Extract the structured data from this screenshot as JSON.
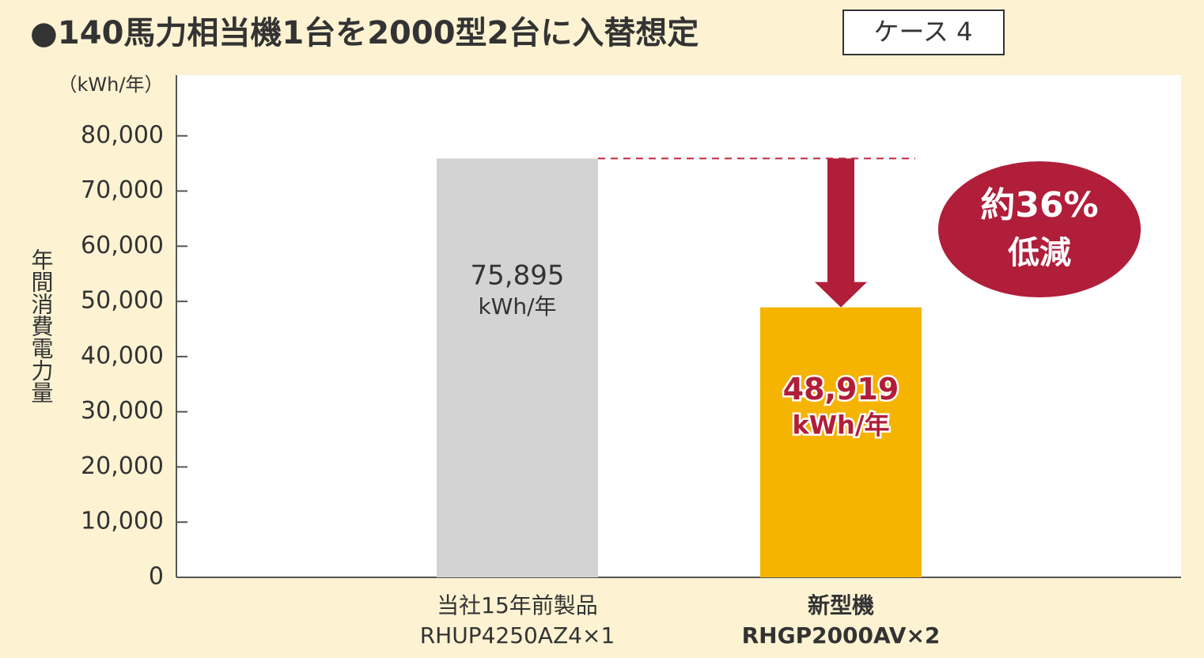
{
  "chart_data": {
    "type": "bar",
    "title": "●140馬力相当機1台を2000型2台に入替想定",
    "badge": "ケース 4",
    "y_unit": "（kWh/年）",
    "y_label": "年間消費電力量",
    "categories": [
      "当社15年前製品",
      "新型機"
    ],
    "category_sublabels": [
      "RHUP4250AZ4×1",
      "RHGP2000AV×2"
    ],
    "values": [
      75895,
      48919
    ],
    "value_labels": [
      "75,895",
      "48,919"
    ],
    "value_label_unit": "kWh/年",
    "colors": [
      "#d3d3d3",
      "#f5b400"
    ],
    "annotation": [
      "約36%",
      "低減"
    ],
    "ylim": [
      0,
      91000
    ],
    "yticks": [
      0,
      {
        "value": 10000,
        "label": "10,000"
      },
      {
        "value": 20000,
        "label": "20,000"
      },
      {
        "value": 30000,
        "label": "30,000"
      },
      {
        "value": 40000,
        "label": "40,000"
      },
      {
        "value": 50000,
        "label": "50,000"
      },
      {
        "value": 60000,
        "label": "60,000"
      },
      {
        "value": 70000,
        "label": "70,000"
      },
      {
        "value": 80000,
        "label": "80,000"
      }
    ]
  }
}
